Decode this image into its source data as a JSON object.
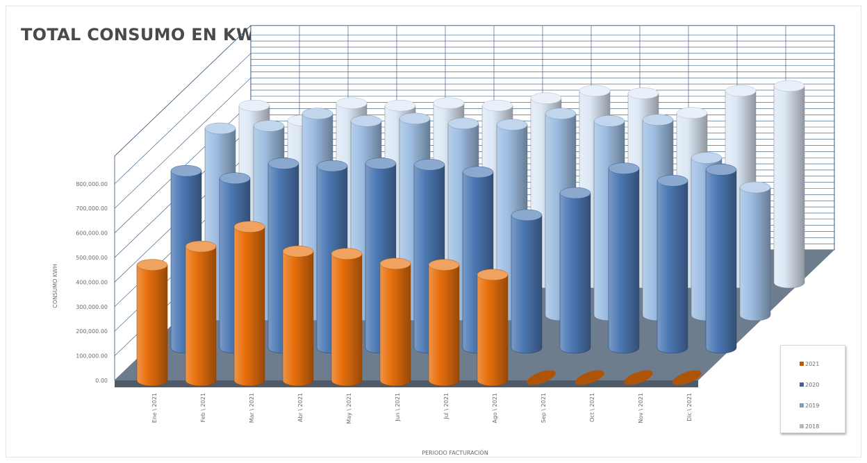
{
  "chart_data": {
    "type": "bar",
    "title": "TOTAL CONSUMO EN KWH",
    "xlabel": "PERIODO FACTURACIÓN",
    "ylabel": "CONSUMO KWH",
    "ylim": [
      0,
      800000
    ],
    "yticks": [
      "0.00",
      "100,000.00",
      "200,000.00",
      "300,000.00",
      "400,000.00",
      "500,000.00",
      "600,000.00",
      "700,000.00",
      "800,000.00"
    ],
    "categories": [
      "Ene \\ 2021",
      "Feb \\ 2021",
      "Mar \\ 2021",
      "Abr \\ 2021",
      "May \\ 2021",
      "Jun \\ 2021",
      "Jul \\ 2021",
      "Ago \\ 2021",
      "Sep \\ 2021",
      "Oct \\ 2021",
      "Nov \\ 2021",
      "Dic \\ 2021"
    ],
    "series": [
      {
        "name": "2021",
        "color": "#e8700c",
        "values": [
          470000,
          545000,
          625000,
          525000,
          515000,
          475000,
          470000,
          430000,
          0,
          0,
          0,
          0
        ]
      },
      {
        "name": "2020",
        "color": "#4d7ab5",
        "values": [
          720000,
          690000,
          750000,
          740000,
          750000,
          745000,
          715000,
          540000,
          630000,
          730000,
          680000,
          725000
        ]
      },
      {
        "name": "2019",
        "color": "#9fbfe3",
        "values": [
          760000,
          770000,
          820000,
          790000,
          800000,
          780000,
          775000,
          820000,
          790000,
          795000,
          640000,
          520000
        ]
      },
      {
        "name": "2018",
        "color": "#dde8f5",
        "values": [
          720000,
          660000,
          730000,
          720000,
          730000,
          720000,
          750000,
          780000,
          770000,
          690000,
          780000,
          800000
        ]
      }
    ],
    "legend_position": "bottom-right",
    "grid": true,
    "chart_style": "3d-cylinder"
  }
}
